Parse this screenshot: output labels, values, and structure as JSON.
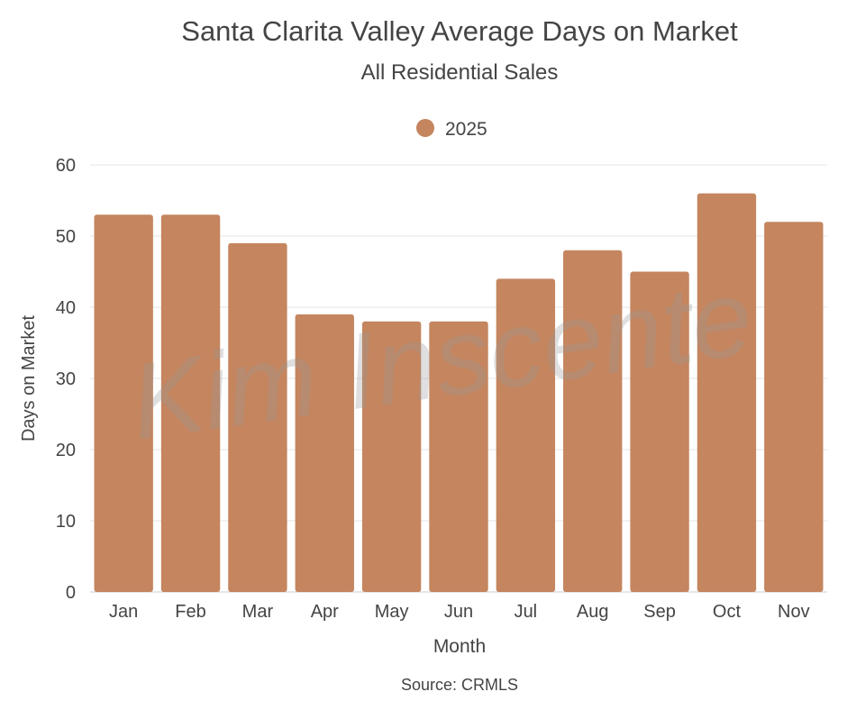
{
  "chart_data": {
    "type": "bar",
    "title": "Santa Clarita Valley Average Days on Market",
    "subtitle": "All Residential Sales",
    "xlabel": "Month",
    "ylabel": "Days on Market",
    "source": "Source: CRMLS",
    "watermark": "Kim Inscente",
    "categories": [
      "Jan",
      "Feb",
      "Mar",
      "Apr",
      "May",
      "Jun",
      "Jul",
      "Aug",
      "Sep",
      "Oct",
      "Nov"
    ],
    "series": [
      {
        "name": "2025",
        "color": "#c4855f",
        "values": [
          53,
          53,
          49,
          39,
          38,
          38,
          44,
          48,
          45,
          56,
          52
        ]
      }
    ],
    "ylim": [
      0,
      60
    ],
    "yticks": [
      0,
      10,
      20,
      30,
      40,
      50,
      60
    ],
    "grid": true,
    "legend": "top-center"
  }
}
